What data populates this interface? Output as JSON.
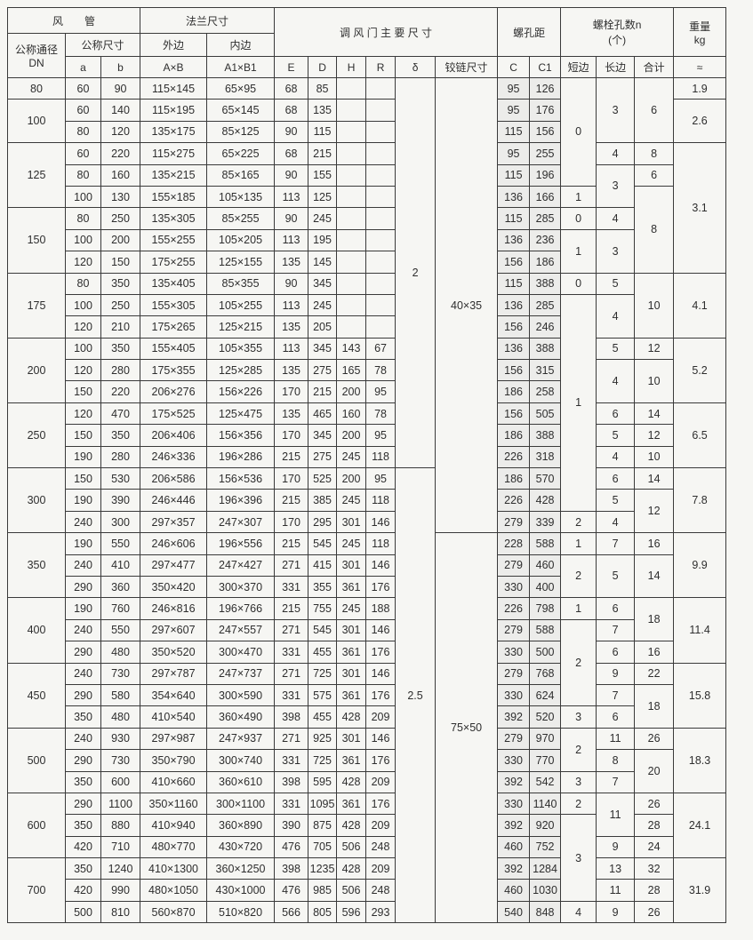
{
  "header": {
    "duct": "风　　管",
    "flange": "法兰尺寸",
    "damper": "调 风 门 主 要 尺 寸",
    "hole_pitch": "螺孔距",
    "bolt_count": "螺栓孔数n",
    "bolt_unit": "(个)",
    "weight": "重量",
    "weight_unit": "kg",
    "nominal_dia": "公称通径",
    "dn": "DN",
    "nominal_size": "公称尺寸",
    "outer": "外边",
    "inner": "内边",
    "approx": "≈",
    "cols": [
      "a",
      "b",
      "A×B",
      "A1×B1",
      "E",
      "D",
      "H",
      "R",
      "δ",
      "铰链尺寸",
      "C",
      "C1",
      "短边",
      "长边",
      "合计"
    ]
  },
  "columns": [
    "dn",
    "a",
    "b",
    "outer",
    "inner",
    "e",
    "d",
    "h",
    "r",
    "delta",
    "hinge",
    "c",
    "c1",
    "short-side",
    "long-side",
    "total",
    "weight"
  ],
  "rows": [
    [
      {
        "v": "80"
      },
      "60",
      "90",
      "115×145",
      "65×95",
      "68",
      "85",
      "",
      "",
      {
        "v": "2",
        "rows": 18
      },
      {
        "v": "40×35",
        "rows": 21
      },
      "95",
      "126",
      {
        "v": "0",
        "rows": 5
      },
      {
        "v": "3",
        "rows": 3
      },
      {
        "v": "6",
        "rows": 3
      },
      "1.9"
    ],
    [
      {
        "v": "100",
        "rows": 2
      },
      "60",
      "140",
      "115×195",
      "65×145",
      "68",
      "135",
      "",
      "",
      "95",
      "176",
      {
        "v": "2.6",
        "rows": 2
      }
    ],
    [
      "80",
      "120",
      "135×175",
      "85×125",
      "90",
      "115",
      "",
      "",
      "115",
      "156"
    ],
    [
      {
        "v": "125",
        "rows": 3
      },
      "60",
      "220",
      "115×275",
      "65×225",
      "68",
      "215",
      "",
      "",
      "95",
      "255",
      "4",
      "8",
      {
        "v": "3.1",
        "rows": 6
      }
    ],
    [
      "80",
      "160",
      "135×215",
      "85×165",
      "90",
      "155",
      "",
      "",
      "115",
      "196",
      {
        "v": "3",
        "rows": 2
      },
      "6"
    ],
    [
      "100",
      "130",
      "155×185",
      "105×135",
      "113",
      "125",
      "",
      "",
      "136",
      "166",
      "1",
      {
        "v": "8",
        "rows": 4
      }
    ],
    [
      {
        "v": "150",
        "rows": 3
      },
      "80",
      "250",
      "135×305",
      "85×255",
      "90",
      "245",
      "",
      "",
      "115",
      "285",
      "0",
      "4"
    ],
    [
      "100",
      "200",
      "155×255",
      "105×205",
      "113",
      "195",
      "",
      "",
      "136",
      "236",
      {
        "v": "1",
        "rows": 2
      },
      {
        "v": "3",
        "rows": 2
      }
    ],
    [
      "120",
      "150",
      "175×255",
      "125×155",
      "135",
      "145",
      "",
      "",
      "156",
      "186"
    ],
    [
      {
        "v": "175",
        "rows": 3
      },
      "80",
      "350",
      "135×405",
      "85×355",
      "90",
      "345",
      "",
      "",
      "115",
      "388",
      "0",
      "5",
      {
        "v": "10",
        "rows": 3
      },
      {
        "v": "4.1",
        "rows": 3
      }
    ],
    [
      "100",
      "250",
      "155×305",
      "105×255",
      "113",
      "245",
      "",
      "",
      "136",
      "285",
      {
        "v": "1",
        "rows": 10
      },
      {
        "v": "4",
        "rows": 2
      }
    ],
    [
      "120",
      "210",
      "175×265",
      "125×215",
      "135",
      "205",
      "",
      "",
      "156",
      "246"
    ],
    [
      {
        "v": "200",
        "rows": 3
      },
      "100",
      "350",
      "155×405",
      "105×355",
      "113",
      "345",
      "143",
      "67",
      "136",
      "388",
      "5",
      "12",
      {
        "v": "5.2",
        "rows": 3
      }
    ],
    [
      "120",
      "280",
      "175×355",
      "125×285",
      "135",
      "275",
      "165",
      "78",
      "156",
      "315",
      {
        "v": "4",
        "rows": 2
      },
      {
        "v": "10",
        "rows": 2
      }
    ],
    [
      "150",
      "220",
      "206×276",
      "156×226",
      "170",
      "215",
      "200",
      "95",
      "186",
      "258"
    ],
    [
      {
        "v": "250",
        "rows": 3
      },
      "120",
      "470",
      "175×525",
      "125×475",
      "135",
      "465",
      "160",
      "78",
      "156",
      "505",
      "6",
      "14",
      {
        "v": "6.5",
        "rows": 3
      }
    ],
    [
      "150",
      "350",
      "206×406",
      "156×356",
      "170",
      "345",
      "200",
      "95",
      "186",
      "388",
      "5",
      "12"
    ],
    [
      "190",
      "280",
      "246×336",
      "196×286",
      "215",
      "275",
      "245",
      "118",
      "226",
      "318",
      "4",
      "10"
    ],
    [
      {
        "v": "300",
        "rows": 3
      },
      "150",
      "530",
      "206×586",
      "156×536",
      "170",
      "525",
      "200",
      "95",
      {
        "v": "2.5",
        "rows": 21
      },
      "186",
      "570",
      "6",
      "14",
      {
        "v": "7.8",
        "rows": 3
      }
    ],
    [
      "190",
      "390",
      "246×446",
      "196×396",
      "215",
      "385",
      "245",
      "118",
      "226",
      "428",
      "5",
      {
        "v": "12",
        "rows": 2
      }
    ],
    [
      "240",
      "300",
      "297×357",
      "247×307",
      "170",
      "295",
      "301",
      "146",
      "279",
      "339",
      "2",
      "4"
    ],
    [
      {
        "v": "350",
        "rows": 3
      },
      "190",
      "550",
      "246×606",
      "196×556",
      "215",
      "545",
      "245",
      "118",
      {
        "v": "75×50",
        "rows": 18
      },
      "228",
      "588",
      "1",
      "7",
      "16",
      {
        "v": "9.9",
        "rows": 3
      }
    ],
    [
      "240",
      "410",
      "297×477",
      "247×427",
      "271",
      "415",
      "301",
      "146",
      "279",
      "460",
      {
        "v": "2",
        "rows": 2
      },
      {
        "v": "5",
        "rows": 2
      },
      {
        "v": "14",
        "rows": 2
      }
    ],
    [
      "290",
      "360",
      "350×420",
      "300×370",
      "331",
      "355",
      "361",
      "176",
      "330",
      "400"
    ],
    [
      {
        "v": "400",
        "rows": 3
      },
      "190",
      "760",
      "246×816",
      "196×766",
      "215",
      "755",
      "245",
      "188",
      "226",
      "798",
      "1",
      "6",
      {
        "v": "18",
        "rows": 2
      },
      {
        "v": "11.4",
        "rows": 3
      }
    ],
    [
      "240",
      "550",
      "297×607",
      "247×557",
      "271",
      "545",
      "301",
      "146",
      "279",
      "588",
      {
        "v": "2",
        "rows": 4
      },
      "7"
    ],
    [
      "290",
      "480",
      "350×520",
      "300×470",
      "331",
      "455",
      "361",
      "176",
      "330",
      "500",
      "6",
      "16"
    ],
    [
      {
        "v": "450",
        "rows": 3
      },
      "240",
      "730",
      "297×787",
      "247×737",
      "271",
      "725",
      "301",
      "146",
      "279",
      "768",
      "9",
      "22",
      {
        "v": "15.8",
        "rows": 3
      }
    ],
    [
      "290",
      "580",
      "354×640",
      "300×590",
      "331",
      "575",
      "361",
      "176",
      "330",
      "624",
      "7",
      {
        "v": "18",
        "rows": 2
      }
    ],
    [
      "350",
      "480",
      "410×540",
      "360×490",
      "398",
      "455",
      "428",
      "209",
      "392",
      "520",
      "3",
      "6"
    ],
    [
      {
        "v": "500",
        "rows": 3
      },
      "240",
      "930",
      "297×987",
      "247×937",
      "271",
      "925",
      "301",
      "146",
      "279",
      "970",
      {
        "v": "2",
        "rows": 2
      },
      "11",
      "26",
      {
        "v": "18.3",
        "rows": 3
      }
    ],
    [
      "290",
      "730",
      "350×790",
      "300×740",
      "331",
      "725",
      "361",
      "176",
      "330",
      "770",
      "8",
      {
        "v": "20",
        "rows": 2
      }
    ],
    [
      "350",
      "600",
      "410×660",
      "360×610",
      "398",
      "595",
      "428",
      "209",
      "392",
      "542",
      "3",
      "7"
    ],
    [
      {
        "v": "600",
        "rows": 3
      },
      "290",
      "1100",
      "350×1160",
      "300×1100",
      "331",
      "1095",
      "361",
      "176",
      "330",
      "1140",
      "2",
      {
        "v": "11",
        "rows": 2
      },
      "26",
      {
        "v": "24.1",
        "rows": 3
      }
    ],
    [
      "350",
      "880",
      "410×940",
      "360×890",
      "390",
      "875",
      "428",
      "209",
      "392",
      "920",
      {
        "v": "3",
        "rows": 4
      },
      "28"
    ],
    [
      "420",
      "710",
      "480×770",
      "430×720",
      "476",
      "705",
      "506",
      "248",
      "460",
      "752",
      "9",
      "24"
    ],
    [
      {
        "v": "700",
        "rows": 3
      },
      "350",
      "1240",
      "410×1300",
      "360×1250",
      "398",
      "1235",
      "428",
      "209",
      "392",
      "1284",
      "13",
      "32",
      {
        "v": "31.9",
        "rows": 3
      }
    ],
    [
      "420",
      "990",
      "480×1050",
      "430×1000",
      "476",
      "985",
      "506",
      "248",
      "460",
      "1030",
      "11",
      "28"
    ],
    [
      "500",
      "810",
      "560×870",
      "510×820",
      "566",
      "805",
      "596",
      "293",
      "540",
      "848",
      "4",
      "9",
      "26"
    ]
  ]
}
